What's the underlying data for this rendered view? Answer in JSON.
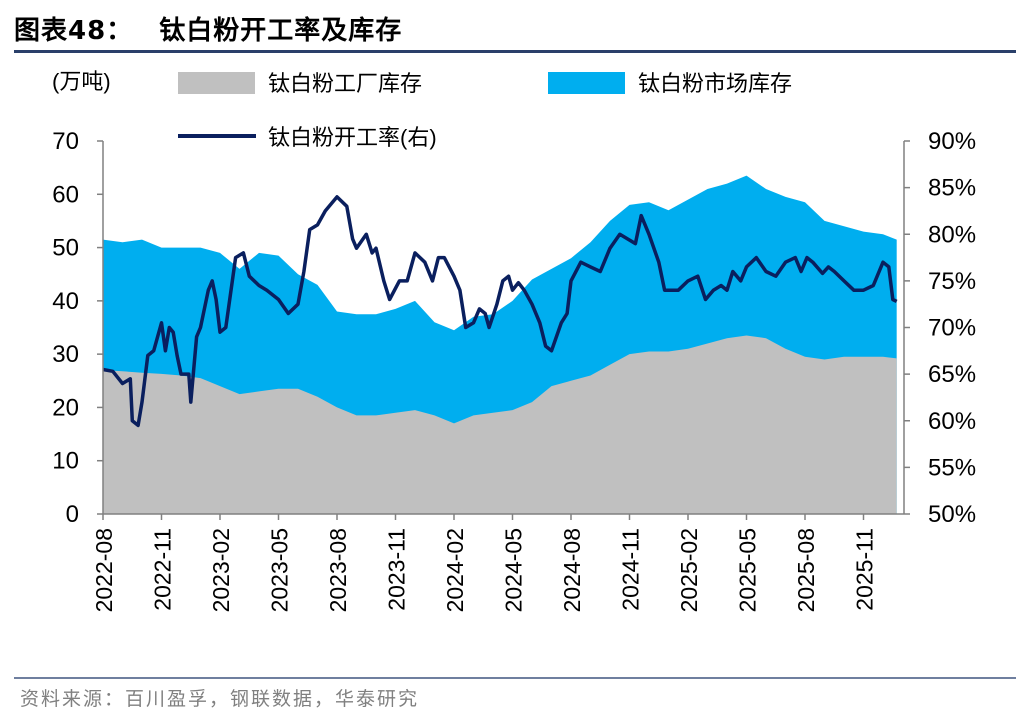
{
  "figure": {
    "label": "图表48：",
    "title": "钛白粉开工率及库存",
    "source": "资料来源：百川盈孚，钢联数据，华泰研究"
  },
  "chart_data": {
    "type": "area+line",
    "title": "钛白粉开工率及库存",
    "ylabel_left": "(万吨)",
    "ylim_left": [
      0,
      70
    ],
    "yticks_left": [
      "0",
      "10",
      "20",
      "30",
      "40",
      "50",
      "60",
      "70"
    ],
    "ylim_right": [
      50,
      90
    ],
    "yticks_right": [
      "50%",
      "55%",
      "60%",
      "65%",
      "70%",
      "75%",
      "80%",
      "85%",
      "90%"
    ],
    "xticks": [
      "2022-08",
      "2022-11",
      "2023-02",
      "2023-05",
      "2023-08",
      "2023-11",
      "2024-02",
      "2024-05",
      "2024-08",
      "2024-11",
      "2025-02",
      "2025-05",
      "2025-08",
      "2025-11"
    ],
    "legend": {
      "factory": "钛白粉工厂库存",
      "market": "钛白粉市场库存",
      "rate": "钛白粉开工率(右)"
    },
    "colors": {
      "factory": "#c0c0c0",
      "market": "#00aeef",
      "rate": "#0a1f5e",
      "axis": "#808080"
    },
    "stack_series": [
      {
        "name": "钛白粉工厂库存",
        "points": [
          [
            0,
            27
          ],
          [
            1,
            26.8
          ],
          [
            2,
            26.5
          ],
          [
            3,
            26.3
          ],
          [
            4,
            26
          ],
          [
            5,
            25.5
          ],
          [
            6,
            24
          ],
          [
            7,
            22.5
          ],
          [
            8,
            23
          ],
          [
            9,
            23.5
          ],
          [
            10,
            23.5
          ],
          [
            11,
            22
          ],
          [
            12,
            20
          ],
          [
            13,
            18.5
          ],
          [
            14,
            18.5
          ],
          [
            15,
            19
          ],
          [
            16,
            19.5
          ],
          [
            17,
            18.5
          ],
          [
            18,
            17
          ],
          [
            19,
            18.5
          ],
          [
            20,
            19
          ],
          [
            21,
            19.5
          ],
          [
            22,
            21
          ],
          [
            23,
            24
          ],
          [
            24,
            25
          ],
          [
            25,
            26
          ],
          [
            26,
            28
          ],
          [
            27,
            30
          ],
          [
            28,
            30.5
          ],
          [
            29,
            30.5
          ],
          [
            30,
            31
          ],
          [
            31,
            32
          ],
          [
            32,
            33
          ],
          [
            33,
            33.5
          ],
          [
            34,
            33
          ],
          [
            35,
            31
          ],
          [
            36,
            29.5
          ],
          [
            37,
            29
          ],
          [
            38,
            29.5
          ],
          [
            39,
            29.5
          ],
          [
            40,
            29.5
          ],
          [
            40.7,
            29.2
          ]
        ]
      },
      {
        "name": "钛白粉市场库存 (累计顶部)",
        "points": [
          [
            0,
            51.5
          ],
          [
            1,
            51
          ],
          [
            2,
            51.5
          ],
          [
            3,
            50
          ],
          [
            4,
            50
          ],
          [
            5,
            50
          ],
          [
            6,
            49
          ],
          [
            7,
            46
          ],
          [
            8,
            49
          ],
          [
            9,
            48.5
          ],
          [
            10,
            45
          ],
          [
            11,
            43
          ],
          [
            12,
            38
          ],
          [
            13,
            37.5
          ],
          [
            14,
            37.5
          ],
          [
            15,
            38.5
          ],
          [
            16,
            40
          ],
          [
            17,
            36
          ],
          [
            18,
            34.5
          ],
          [
            19,
            37
          ],
          [
            20,
            37.5
          ],
          [
            21,
            40
          ],
          [
            22,
            44
          ],
          [
            23,
            46
          ],
          [
            24,
            48
          ],
          [
            25,
            51
          ],
          [
            26,
            55
          ],
          [
            27,
            58
          ],
          [
            28,
            58.5
          ],
          [
            29,
            57
          ],
          [
            30,
            59
          ],
          [
            31,
            61
          ],
          [
            32,
            62
          ],
          [
            33,
            63.5
          ],
          [
            34,
            61
          ],
          [
            35,
            59.5
          ],
          [
            36,
            58.5
          ],
          [
            37,
            55
          ],
          [
            38,
            54
          ],
          [
            39,
            53
          ],
          [
            40,
            52.5
          ],
          [
            40.7,
            51.5
          ]
        ]
      }
    ],
    "line_series": {
      "name": "钛白粉开工率(右)",
      "points": [
        [
          0,
          65.5
        ],
        [
          0.5,
          65.3
        ],
        [
          1,
          64
        ],
        [
          1.4,
          64.5
        ],
        [
          1.5,
          60
        ],
        [
          1.8,
          59.5
        ],
        [
          2,
          62
        ],
        [
          2.3,
          67
        ],
        [
          2.6,
          67.5
        ],
        [
          2.8,
          69
        ],
        [
          3,
          70.5
        ],
        [
          3.2,
          67.5
        ],
        [
          3.4,
          70
        ],
        [
          3.6,
          69.5
        ],
        [
          3.8,
          67
        ],
        [
          4,
          65
        ],
        [
          4.4,
          65
        ],
        [
          4.5,
          62
        ],
        [
          4.8,
          69
        ],
        [
          5,
          70
        ],
        [
          5.4,
          74
        ],
        [
          5.6,
          75
        ],
        [
          5.8,
          73
        ],
        [
          6,
          69.5
        ],
        [
          6.3,
          70
        ],
        [
          6.8,
          77.5
        ],
        [
          7.2,
          78
        ],
        [
          7.5,
          75.5
        ],
        [
          8,
          74.5
        ],
        [
          8.4,
          74
        ],
        [
          9,
          73
        ],
        [
          9.5,
          71.5
        ],
        [
          10,
          72.5
        ],
        [
          10.3,
          76
        ],
        [
          10.6,
          80.5
        ],
        [
          11,
          81
        ],
        [
          11.4,
          82.5
        ],
        [
          12,
          84
        ],
        [
          12.5,
          83
        ],
        [
          12.8,
          79.5
        ],
        [
          13,
          78.5
        ],
        [
          13.5,
          80
        ],
        [
          13.8,
          78
        ],
        [
          14,
          78.5
        ],
        [
          14.4,
          75
        ],
        [
          14.7,
          73
        ],
        [
          15.2,
          75
        ],
        [
          15.6,
          75
        ],
        [
          16,
          78
        ],
        [
          16.5,
          77
        ],
        [
          16.9,
          75
        ],
        [
          17.2,
          77.5
        ],
        [
          17.5,
          77.5
        ],
        [
          18,
          75.5
        ],
        [
          18.3,
          74
        ],
        [
          18.6,
          70
        ],
        [
          19,
          70.5
        ],
        [
          19.3,
          72
        ],
        [
          19.6,
          71.5
        ],
        [
          19.8,
          70
        ],
        [
          20.2,
          72.5
        ],
        [
          20.5,
          75
        ],
        [
          20.8,
          75.5
        ],
        [
          21,
          74
        ],
        [
          21.3,
          74.8
        ],
        [
          21.6,
          74
        ],
        [
          22,
          72.5
        ],
        [
          22.4,
          70.5
        ],
        [
          22.7,
          68
        ],
        [
          23,
          67.5
        ],
        [
          23.5,
          70.5
        ],
        [
          23.8,
          71.5
        ],
        [
          24,
          75
        ],
        [
          24.5,
          77
        ],
        [
          25,
          76.5
        ],
        [
          25.5,
          76
        ],
        [
          26,
          78.5
        ],
        [
          26.5,
          80
        ],
        [
          26.9,
          79.5
        ],
        [
          27.3,
          79
        ],
        [
          27.6,
          82
        ],
        [
          28,
          80
        ],
        [
          28.5,
          77
        ],
        [
          28.8,
          74
        ],
        [
          29.5,
          74
        ],
        [
          30,
          75
        ],
        [
          30.5,
          75.5
        ],
        [
          30.9,
          73
        ],
        [
          31.3,
          74
        ],
        [
          31.7,
          74.5
        ],
        [
          32,
          74
        ],
        [
          32.3,
          76
        ],
        [
          32.7,
          75
        ],
        [
          33,
          76.5
        ],
        [
          33.5,
          77.5
        ],
        [
          34,
          76
        ],
        [
          34.5,
          75.5
        ],
        [
          35,
          77
        ],
        [
          35.5,
          77.5
        ],
        [
          35.8,
          76
        ],
        [
          36.1,
          77.5
        ],
        [
          36.4,
          77
        ],
        [
          36.9,
          75.8
        ],
        [
          37.2,
          76.5
        ],
        [
          37.5,
          76
        ],
        [
          38,
          75
        ],
        [
          38.5,
          74
        ],
        [
          39,
          74
        ],
        [
          39.5,
          74.5
        ],
        [
          40,
          77
        ],
        [
          40.3,
          76.5
        ],
        [
          40.5,
          73
        ],
        [
          40.7,
          72.8
        ]
      ]
    }
  }
}
